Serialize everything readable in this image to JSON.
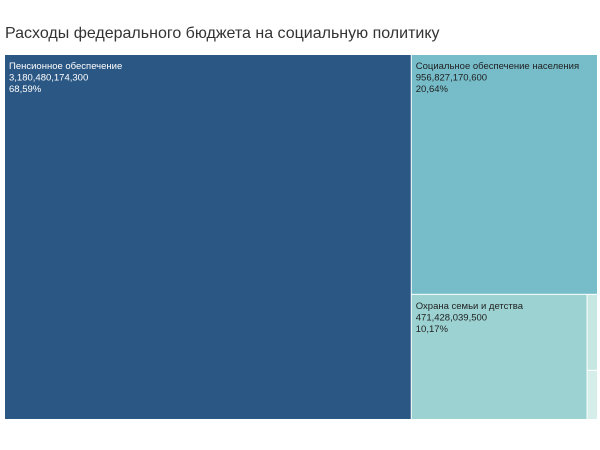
{
  "chart_data": {
    "type": "treemap",
    "title": "Расходы федерального бюджета на социальную политику",
    "series": [
      {
        "name": "Пенсионное обеспечение",
        "value": 3180480174300,
        "value_label": "3,180,480,174,300",
        "share_label": "68,59%",
        "color": "#2b5784",
        "text_color": "#ffffff"
      },
      {
        "name": "Социальное обеспечение населения",
        "value": 956827170600,
        "value_label": "956,827,170,600",
        "share_label": "20,64%",
        "color": "#76bcc9",
        "text_color": "#1f1f1f"
      },
      {
        "name": "Охрана семьи и детства",
        "value": 471428039500,
        "value_label": "471,428,039,500",
        "share_label": "10,17%",
        "color": "#9cd3d2",
        "text_color": "#1f1f1f"
      },
      {
        "name": "",
        "value": 17000000000,
        "color": "#c7e7e2"
      },
      {
        "name": "",
        "value": 11000000000,
        "color": "#d6eee9"
      }
    ]
  }
}
